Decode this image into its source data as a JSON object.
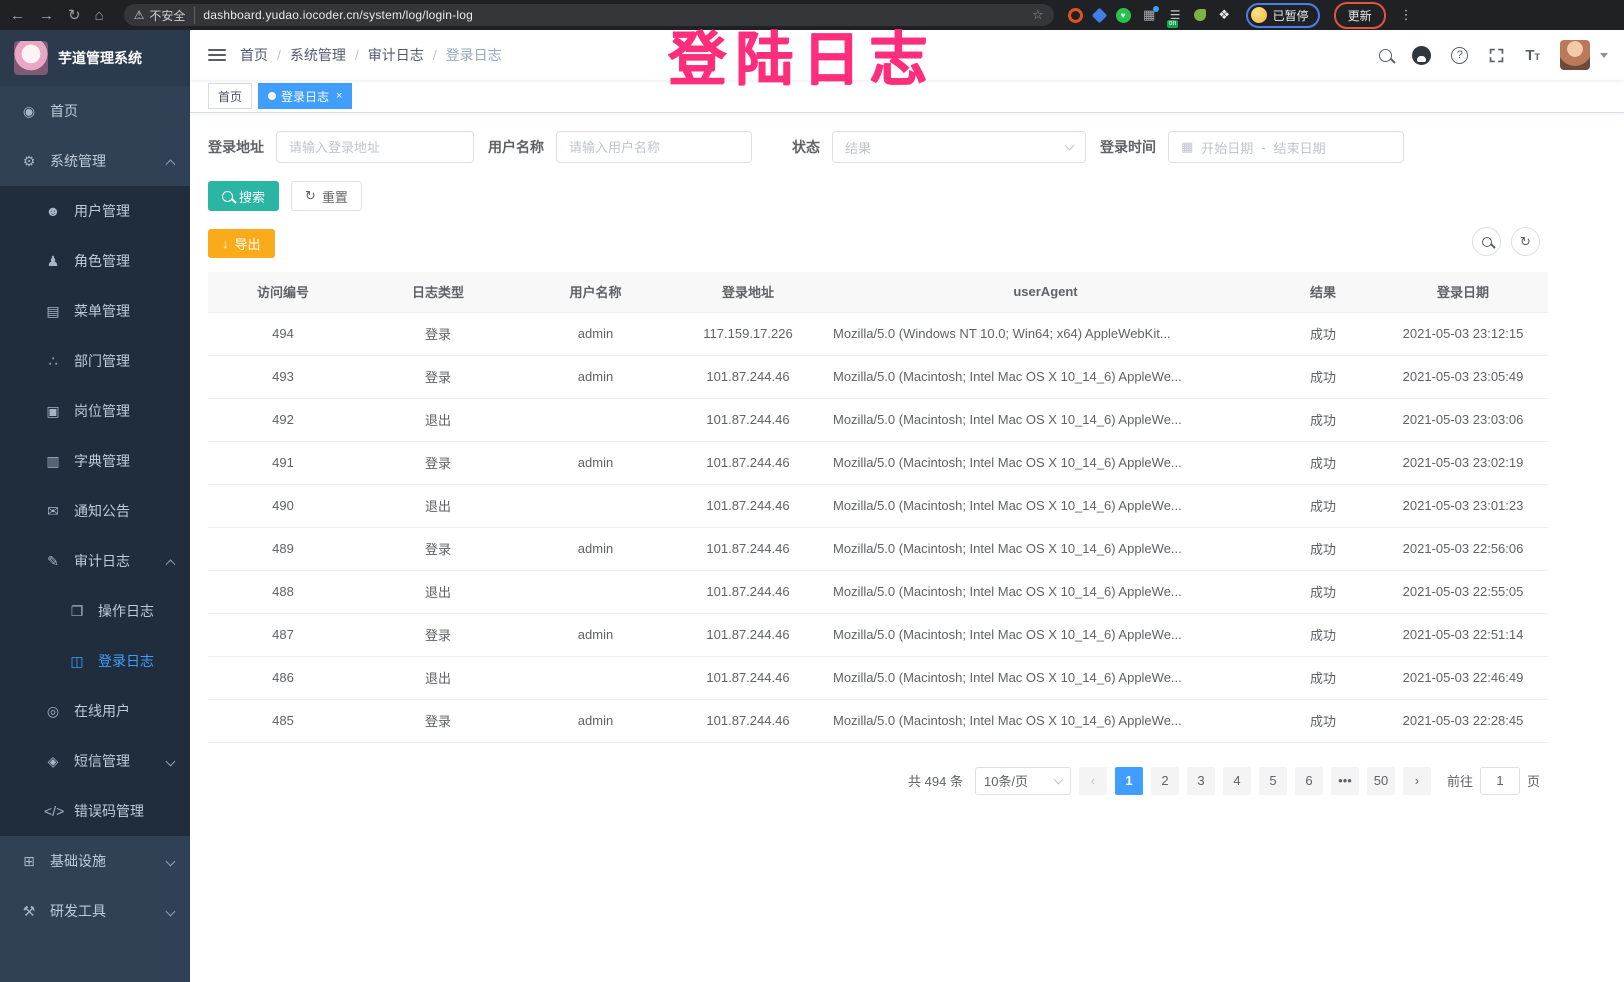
{
  "colors": {
    "accent": "#409eff",
    "teal": "#2bb5a3",
    "amber": "#fbab1a",
    "pink": "#ff2e7c",
    "sidebar_bg": "#304156",
    "submenu_bg": "#1f2d3d"
  },
  "annotation": {
    "text": "登陆日志"
  },
  "browser": {
    "security_label": "不安全",
    "url": "dashboard.yudao.iocoder.cn/system/log/login-log",
    "profile_label": "已暂停",
    "update_label": "更新",
    "icons": {
      "back": "←",
      "forward": "→",
      "reload": "↻",
      "home": "⌂",
      "warning": "⚠",
      "star": "☆",
      "kebab": "⋮"
    },
    "extensions": [
      {
        "name": "orange-ring-extension-icon",
        "shape": "ring",
        "color": "#e0531f"
      },
      {
        "name": "blue-gem-extension-icon",
        "shape": "diamond",
        "color": "#3f7fe8"
      },
      {
        "name": "green-heart-extension-icon",
        "shape": "circle",
        "color": "#27c24c"
      },
      {
        "name": "grid-blue-dot-extension-icon",
        "shape": "grid",
        "color": "#8a8f98"
      },
      {
        "name": "list-on-extension-icon",
        "shape": "list",
        "color": "#9aa0a6",
        "badge": "on",
        "badge_color": "#15a24a"
      },
      {
        "name": "green-leaf-extension-icon",
        "shape": "leaf",
        "color": "#7cb342"
      },
      {
        "name": "puzzle-extension-icon",
        "shape": "puzzle",
        "color": "#e8eaed"
      }
    ]
  },
  "sidebar": {
    "logo_title": "芋道管理系统",
    "items": [
      {
        "label": "首页",
        "icon": "dashboard-icon",
        "glyph": "◉",
        "level": 1
      },
      {
        "label": "系统管理",
        "icon": "gear-icon",
        "glyph": "⚙",
        "level": 1,
        "arrow": "up"
      },
      {
        "label": "用户管理",
        "icon": "user-icon",
        "glyph": "☻",
        "level": 2
      },
      {
        "label": "角色管理",
        "icon": "roles-icon",
        "glyph": "♟",
        "level": 2
      },
      {
        "label": "菜单管理",
        "icon": "menu-list-icon",
        "glyph": "▤",
        "level": 2
      },
      {
        "label": "部门管理",
        "icon": "dept-tree-icon",
        "glyph": "∴",
        "level": 2
      },
      {
        "label": "岗位管理",
        "icon": "post-badge-icon",
        "glyph": "▣",
        "level": 2
      },
      {
        "label": "字典管理",
        "icon": "dict-book-icon",
        "glyph": "▥",
        "level": 2
      },
      {
        "label": "通知公告",
        "icon": "notice-icon",
        "glyph": "✉",
        "level": 2
      },
      {
        "label": "审计日志",
        "icon": "audit-log-icon",
        "glyph": "✎",
        "level": 2,
        "arrow": "up"
      },
      {
        "label": "操作日志",
        "icon": "operate-log-icon",
        "glyph": "❐",
        "level": 3
      },
      {
        "label": "登录日志",
        "icon": "login-log-icon",
        "glyph": "◫",
        "level": 3,
        "active": true
      },
      {
        "label": "在线用户",
        "icon": "online-users-icon",
        "glyph": "◎",
        "level": 2
      },
      {
        "label": "短信管理",
        "icon": "sms-shield-icon",
        "glyph": "◈",
        "level": 2,
        "arrow": "down"
      },
      {
        "label": "错误码管理",
        "icon": "error-code-icon",
        "glyph": "</>",
        "level": 2
      },
      {
        "label": "基础设施",
        "icon": "infra-monitor-icon",
        "glyph": "⊞",
        "level": 1,
        "arrow": "down"
      },
      {
        "label": "研发工具",
        "icon": "devtools-icon",
        "glyph": "⚒",
        "level": 1,
        "arrow": "down"
      }
    ]
  },
  "header": {
    "breadcrumb": [
      "首页",
      "系统管理",
      "审计日志",
      "登录日志"
    ]
  },
  "tags": [
    {
      "label": "首页",
      "active": false
    },
    {
      "label": "登录日志",
      "active": true,
      "closable": true
    }
  ],
  "filters": {
    "address_label": "登录地址",
    "address_placeholder": "请输入登录地址",
    "username_label": "用户名称",
    "username_placeholder": "请输入用户名称",
    "status_label": "状态",
    "status_placeholder": "结果",
    "time_label": "登录时间",
    "time_start_placeholder": "开始日期",
    "time_separator": "-",
    "time_end_placeholder": "结束日期",
    "search_label": "搜索",
    "reset_label": "重置"
  },
  "toolbar": {
    "export_label": "导出"
  },
  "table": {
    "columns": [
      {
        "label": "访问编号",
        "key": "id",
        "align": "center"
      },
      {
        "label": "日志类型",
        "key": "type",
        "align": "center"
      },
      {
        "label": "用户名称",
        "key": "username",
        "align": "center"
      },
      {
        "label": "登录地址",
        "key": "ip",
        "align": "center"
      },
      {
        "label": "userAgent",
        "key": "user_agent",
        "align": "left"
      },
      {
        "label": "结果",
        "key": "result",
        "align": "center"
      },
      {
        "label": "登录日期",
        "key": "date",
        "align": "center"
      }
    ],
    "rows": [
      {
        "id": "494",
        "type": "登录",
        "username": "admin",
        "ip": "117.159.17.226",
        "user_agent": "Mozilla/5.0 (Windows NT 10.0; Win64; x64) AppleWebKit...",
        "result": "成功",
        "date": "2021-05-03 23:12:15"
      },
      {
        "id": "493",
        "type": "登录",
        "username": "admin",
        "ip": "101.87.244.46",
        "user_agent": "Mozilla/5.0 (Macintosh; Intel Mac OS X 10_14_6) AppleWe...",
        "result": "成功",
        "date": "2021-05-03 23:05:49"
      },
      {
        "id": "492",
        "type": "退出",
        "username": "",
        "ip": "101.87.244.46",
        "user_agent": "Mozilla/5.0 (Macintosh; Intel Mac OS X 10_14_6) AppleWe...",
        "result": "成功",
        "date": "2021-05-03 23:03:06"
      },
      {
        "id": "491",
        "type": "登录",
        "username": "admin",
        "ip": "101.87.244.46",
        "user_agent": "Mozilla/5.0 (Macintosh; Intel Mac OS X 10_14_6) AppleWe...",
        "result": "成功",
        "date": "2021-05-03 23:02:19"
      },
      {
        "id": "490",
        "type": "退出",
        "username": "",
        "ip": "101.87.244.46",
        "user_agent": "Mozilla/5.0 (Macintosh; Intel Mac OS X 10_14_6) AppleWe...",
        "result": "成功",
        "date": "2021-05-03 23:01:23"
      },
      {
        "id": "489",
        "type": "登录",
        "username": "admin",
        "ip": "101.87.244.46",
        "user_agent": "Mozilla/5.0 (Macintosh; Intel Mac OS X 10_14_6) AppleWe...",
        "result": "成功",
        "date": "2021-05-03 22:56:06"
      },
      {
        "id": "488",
        "type": "退出",
        "username": "",
        "ip": "101.87.244.46",
        "user_agent": "Mozilla/5.0 (Macintosh; Intel Mac OS X 10_14_6) AppleWe...",
        "result": "成功",
        "date": "2021-05-03 22:55:05"
      },
      {
        "id": "487",
        "type": "登录",
        "username": "admin",
        "ip": "101.87.244.46",
        "user_agent": "Mozilla/5.0 (Macintosh; Intel Mac OS X 10_14_6) AppleWe...",
        "result": "成功",
        "date": "2021-05-03 22:51:14"
      },
      {
        "id": "486",
        "type": "退出",
        "username": "",
        "ip": "101.87.244.46",
        "user_agent": "Mozilla/5.0 (Macintosh; Intel Mac OS X 10_14_6) AppleWe...",
        "result": "成功",
        "date": "2021-05-03 22:46:49"
      },
      {
        "id": "485",
        "type": "登录",
        "username": "admin",
        "ip": "101.87.244.46",
        "user_agent": "Mozilla/5.0 (Macintosh; Intel Mac OS X 10_14_6) AppleWe...",
        "result": "成功",
        "date": "2021-05-03 22:28:45"
      }
    ]
  },
  "pagination": {
    "total_label": "共 494 条",
    "page_size_value": "10条/页",
    "pages": [
      "1",
      "2",
      "3",
      "4",
      "5",
      "6",
      "•••",
      "50"
    ],
    "active_page": "1",
    "prev": "‹",
    "next": "›",
    "goto_label": "前往",
    "goto_value": "1",
    "goto_suffix": "页"
  }
}
